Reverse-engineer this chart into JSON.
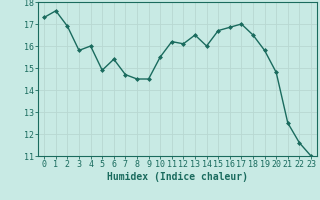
{
  "x": [
    0,
    1,
    2,
    3,
    4,
    5,
    6,
    7,
    8,
    9,
    10,
    11,
    12,
    13,
    14,
    15,
    16,
    17,
    18,
    19,
    20,
    21,
    22,
    23
  ],
  "y": [
    17.3,
    17.6,
    16.9,
    15.8,
    16.0,
    14.9,
    15.4,
    14.7,
    14.5,
    14.5,
    15.5,
    16.2,
    16.1,
    16.5,
    16.0,
    16.7,
    16.85,
    17.0,
    16.5,
    15.8,
    14.8,
    12.5,
    11.6,
    11.0
  ],
  "line_color": "#1a6b5e",
  "marker": "D",
  "marker_size": 2.0,
  "background_color": "#c8eae4",
  "grid_color": "#b8d8d2",
  "xlabel": "Humidex (Indice chaleur)",
  "ylim": [
    11,
    18
  ],
  "xlim": [
    -0.5,
    23.5
  ],
  "yticks": [
    11,
    12,
    13,
    14,
    15,
    16,
    17,
    18
  ],
  "xticks": [
    0,
    1,
    2,
    3,
    4,
    5,
    6,
    7,
    8,
    9,
    10,
    11,
    12,
    13,
    14,
    15,
    16,
    17,
    18,
    19,
    20,
    21,
    22,
    23
  ],
  "xlabel_fontsize": 7,
  "tick_fontsize": 6,
  "line_width": 1.0
}
